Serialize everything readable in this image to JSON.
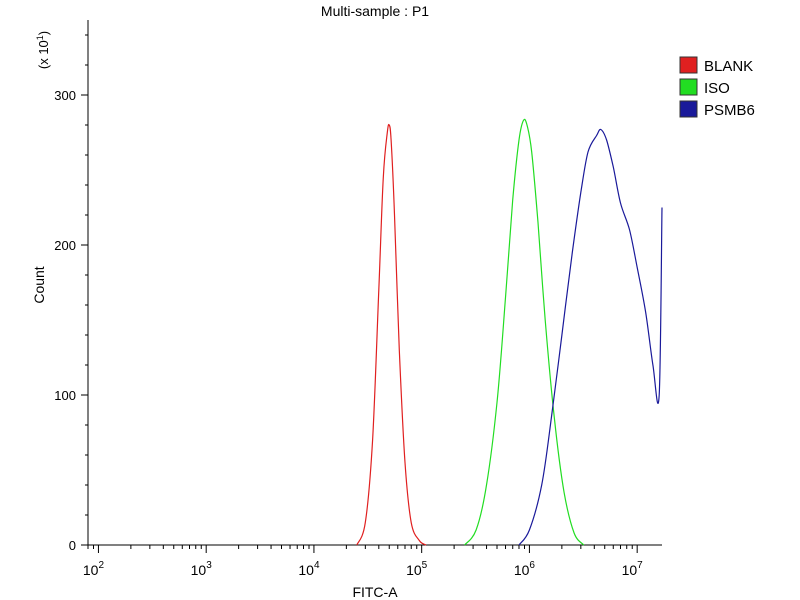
{
  "chart_data": {
    "type": "line",
    "title": "Multi-sample : P1",
    "xlabel": "FITC-A",
    "ylabel": "Count",
    "y_scale_note": "(x 10^1)",
    "y_multiplier_base": "x 10",
    "y_multiplier_exp": "1",
    "x_scale": "log",
    "xlim": [
      80,
      17000000
    ],
    "ylim": [
      0,
      350
    ],
    "x_ticks": [
      {
        "value": 100,
        "base": "10",
        "exp": "2"
      },
      {
        "value": 1000,
        "base": "10",
        "exp": "3"
      },
      {
        "value": 10000,
        "base": "10",
        "exp": "4"
      },
      {
        "value": 100000,
        "base": "10",
        "exp": "5"
      },
      {
        "value": 1000000,
        "base": "10",
        "exp": "6"
      },
      {
        "value": 10000000,
        "base": "10",
        "exp": "7"
      }
    ],
    "y_ticks": [
      {
        "value": 0,
        "label": "0"
      },
      {
        "value": 100,
        "label": "100"
      },
      {
        "value": 200,
        "label": "200"
      },
      {
        "value": 300,
        "label": "300"
      }
    ],
    "legend_position": "top-right",
    "series": [
      {
        "name": "BLANK",
        "color": "#e02020",
        "x": [
          25000,
          30000,
          35000,
          40000,
          44000,
          48000,
          50000,
          52000,
          56000,
          62000,
          70000,
          80000,
          95000,
          110000
        ],
        "y": [
          0,
          15,
          70,
          170,
          245,
          275,
          280,
          270,
          220,
          130,
          55,
          15,
          3,
          0
        ]
      },
      {
        "name": "ISO",
        "color": "#22dd22",
        "x": [
          250000,
          320000,
          400000,
          500000,
          600000,
          700000,
          800000,
          880000,
          950000,
          1050000,
          1200000,
          1400000,
          1700000,
          2100000,
          2600000,
          3200000
        ],
        "y": [
          0,
          10,
          40,
          95,
          165,
          230,
          270,
          283,
          280,
          262,
          215,
          150,
          85,
          35,
          8,
          0
        ]
      },
      {
        "name": "PSMB6",
        "color": "#1a1a9a",
        "x": [
          800000,
          1000000,
          1300000,
          1600000,
          2000000,
          2500000,
          3000000,
          3500000,
          4200000,
          4600000,
          5200000,
          6000000,
          7000000,
          8500000,
          10000000,
          12000000,
          14000000,
          16000000,
          17000000
        ],
        "y": [
          0,
          10,
          40,
          85,
          140,
          195,
          235,
          262,
          273,
          277,
          270,
          252,
          228,
          210,
          185,
          155,
          120,
          100,
          225
        ]
      }
    ]
  }
}
